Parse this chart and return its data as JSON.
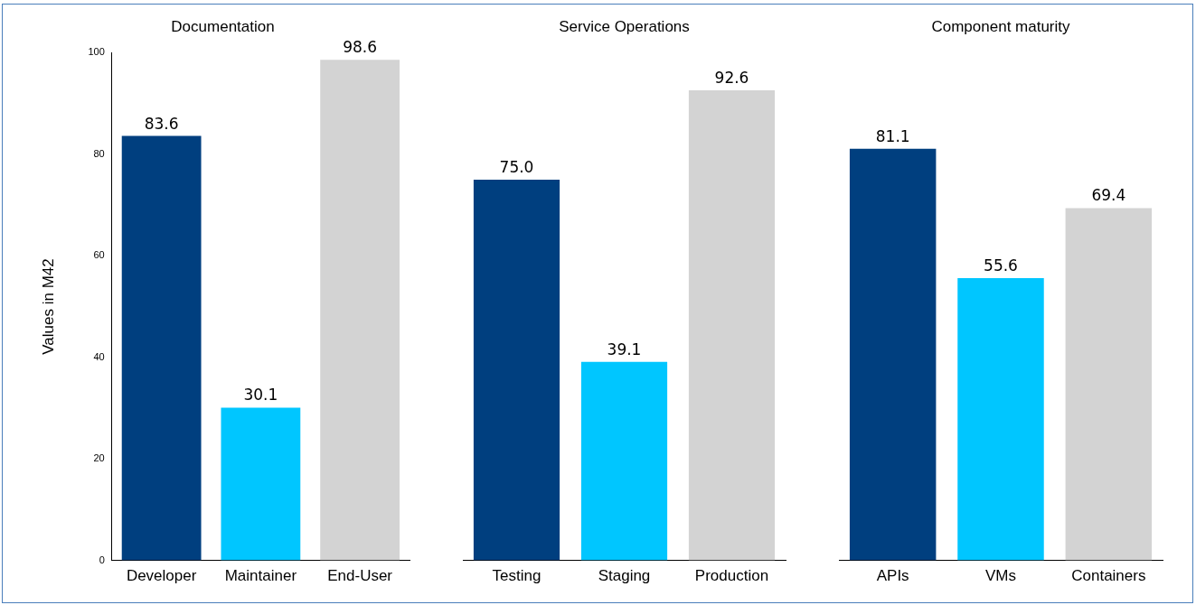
{
  "chart_data": [
    {
      "type": "bar",
      "title": "Documentation",
      "ylabel": "Values in M42",
      "categories": [
        "Developer",
        "Maintainer",
        "End-User"
      ],
      "values": [
        83.6,
        30.1,
        98.6
      ],
      "value_labels": [
        "83.6",
        "30.1",
        "98.6"
      ],
      "colors": [
        "#003f7f",
        "#00c6ff",
        "#d3d3d3"
      ],
      "ylim": [
        0,
        100
      ],
      "yticks": [
        0,
        20,
        40,
        60,
        80,
        100
      ],
      "grid": false,
      "legend": false
    },
    {
      "type": "bar",
      "title": "Service Operations",
      "categories": [
        "Testing",
        "Staging",
        "Production"
      ],
      "values": [
        75.0,
        39.1,
        92.6
      ],
      "value_labels": [
        "75.0",
        "39.1",
        "92.6"
      ],
      "colors": [
        "#003f7f",
        "#00c6ff",
        "#d3d3d3"
      ],
      "ylim": [
        0,
        100
      ],
      "grid": false,
      "legend": false,
      "tick_labels": "x"
    },
    {
      "type": "bar",
      "title": "Component maturity",
      "categories": [
        "APIs",
        "VMs",
        "Containers"
      ],
      "values": [
        81.1,
        55.6,
        69.4
      ],
      "value_labels": [
        "81.1",
        "55.6",
        "69.4"
      ],
      "colors": [
        "#003f7f",
        "#00c6ff",
        "#d3d3d3"
      ],
      "ylim": [
        0,
        100
      ],
      "grid": false,
      "legend": false,
      "tick_labels": "x"
    }
  ]
}
